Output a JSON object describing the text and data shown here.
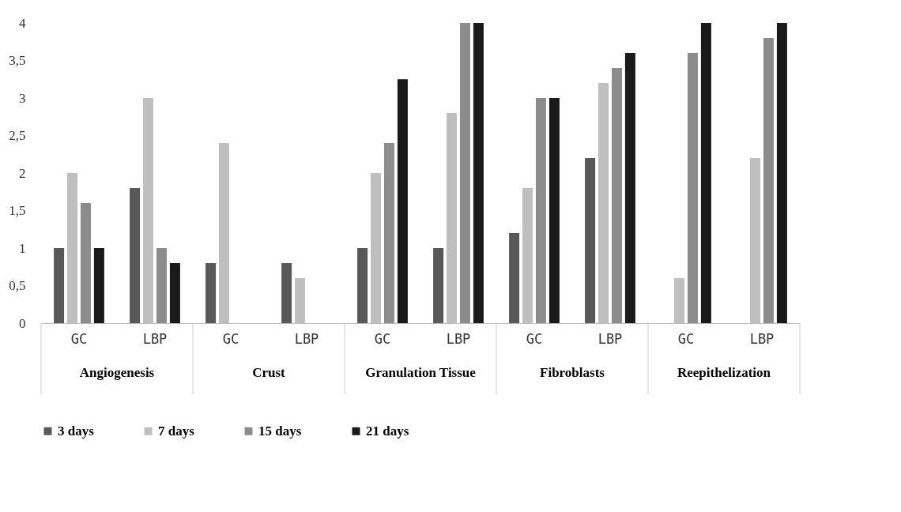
{
  "chart_data": {
    "type": "bar",
    "categories": [
      "GC",
      "LBP",
      "GC",
      "LBP",
      "GC",
      "LBP",
      "GC",
      "LBP",
      "GC",
      "LBP"
    ],
    "annotations": [
      "Angiogenesis",
      "Crust",
      "Granulation Tissue",
      "Fibroblasts",
      "Reepithelization"
    ],
    "series": [
      {
        "name": "3 days",
        "color": "#595959",
        "values": [
          1,
          1.8,
          0.8,
          0.8,
          1,
          1,
          1.2,
          2.2,
          0,
          0
        ]
      },
      {
        "name": "7 days",
        "color": "#bfbfbf",
        "values": [
          2,
          3,
          2.4,
          0.6,
          2,
          2.8,
          1.8,
          3.2,
          0.6,
          2.2
        ]
      },
      {
        "name": "15 days",
        "color": "#8c8c8c",
        "values": [
          1.6,
          1,
          0,
          0,
          2.4,
          4,
          3,
          3.4,
          3.6,
          3.8
        ]
      },
      {
        "name": "21 days",
        "color": "#1a1a1a",
        "values": [
          1,
          0.8,
          0,
          0,
          3.25,
          4,
          3,
          3.6,
          4,
          4
        ]
      }
    ],
    "ylim": [
      0,
      4
    ],
    "yticks": [
      0,
      {
        "value": 0.5,
        "label": "0,5"
      },
      1,
      {
        "value": 1.5,
        "label": "1,5"
      },
      2,
      {
        "value": 2.5,
        "label": "2,5"
      },
      3,
      {
        "value": 3.5,
        "label": "3,5"
      },
      4
    ],
    "grid": false,
    "legend": "bottom"
  }
}
